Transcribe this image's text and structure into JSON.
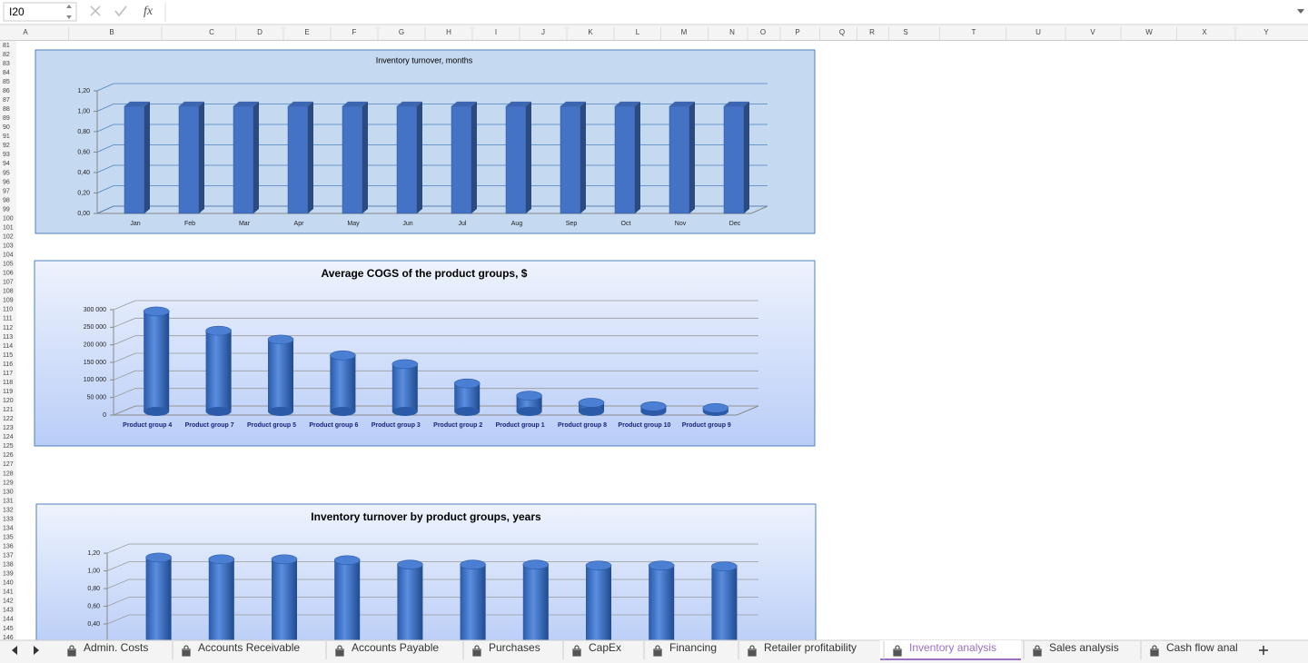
{
  "name_box": "I20",
  "formula_label": "fx",
  "columns": [
    "A",
    "B",
    "C",
    "D",
    "E",
    "F",
    "G",
    "H",
    "I",
    "J",
    "K",
    "L",
    "M",
    "N",
    "O",
    "P",
    "Q",
    "R",
    "S",
    "T",
    "U",
    "V",
    "W",
    "X",
    "Y"
  ],
  "rows": [
    81,
    82,
    83,
    84,
    85,
    86,
    87,
    88,
    89,
    90,
    91,
    92,
    93,
    94,
    95,
    96,
    97,
    98,
    99,
    100,
    101,
    102,
    103,
    104,
    105,
    106,
    107,
    108,
    109,
    110,
    111,
    112,
    113,
    114,
    115,
    116,
    117,
    118,
    119,
    120,
    121,
    122,
    123,
    124,
    125,
    126,
    127,
    128,
    129,
    130,
    131,
    132,
    133,
    134,
    135,
    136,
    137,
    138,
    139,
    140,
    141,
    142,
    143,
    144,
    145,
    146
  ],
  "tabs": [
    "Admin. Costs",
    "Accounts Receivable",
    "Accounts Payable",
    "Purchases",
    "CapEx",
    "Financing",
    "Retailer profitability",
    "Inventory analysis",
    "Sales analysis",
    "Cash flow anal"
  ],
  "active_tab": "Inventory analysis",
  "chart_data": [
    {
      "type": "bar",
      "shape": "box",
      "title": "Inventory turnover, months",
      "color": "#4472c4",
      "grid": true,
      "categories": [
        "Jan",
        "Feb",
        "Mar",
        "Apr",
        "May",
        "Jun",
        "Jul",
        "Aug",
        "Sep",
        "Oct",
        "Nov",
        "Dec"
      ],
      "values": [
        1.05,
        1.05,
        1.05,
        1.05,
        1.05,
        1.05,
        1.05,
        1.05,
        1.05,
        1.05,
        1.05,
        1.05
      ],
      "ylim": [
        0,
        1.2
      ],
      "yticks": [
        {
          "value": 0,
          "label": "0,00"
        },
        {
          "value": 0.2,
          "label": "0,20"
        },
        {
          "value": 0.4,
          "label": "0,40"
        },
        {
          "value": 0.6,
          "label": "0,60"
        },
        {
          "value": 0.8,
          "label": "0,80"
        },
        {
          "value": 1,
          "label": "1,00"
        },
        {
          "value": 1.2,
          "label": "1,20"
        }
      ]
    },
    {
      "type": "bar",
      "shape": "cylinder",
      "title": "Average COGS of the product groups, $",
      "color": "#4472c4",
      "grid": true,
      "categories": [
        "Product group 4",
        "Product group 7",
        "Product group 5",
        "Product group 6",
        "Product group 3",
        "Product group 2",
        "Product group 1",
        "Product group 8",
        "Product group 10",
        "Product group 9"
      ],
      "values": [
        295000,
        240000,
        215000,
        170000,
        145000,
        90000,
        55000,
        35000,
        25000,
        20000
      ],
      "ylim": [
        0,
        300000
      ],
      "yticks": [
        0,
        {
          "value": 50000,
          "label": "50 000"
        },
        {
          "value": 100000,
          "label": "100 000"
        },
        {
          "value": 150000,
          "label": "150 000"
        },
        {
          "value": 200000,
          "label": "200 000"
        },
        {
          "value": 250000,
          "label": "250 000"
        },
        {
          "value": 300000,
          "label": "300 000"
        }
      ]
    },
    {
      "type": "bar",
      "shape": "cylinder",
      "title": "Inventory turnover by product groups, years",
      "color": "#4472c4",
      "grid": true,
      "values": [
        1.15,
        1.13,
        1.13,
        1.12,
        1.07,
        1.07,
        1.07,
        1.06,
        1.06,
        1.05
      ],
      "ylim": [
        0,
        1.2
      ],
      "yticks": [
        {
          "value": 0.4,
          "label": "0,40"
        },
        {
          "value": 0.6,
          "label": "0,60"
        },
        {
          "value": 0.8,
          "label": "0,80"
        },
        {
          "value": 1,
          "label": "1,00"
        },
        {
          "value": 1.2,
          "label": "1,20"
        }
      ]
    }
  ]
}
